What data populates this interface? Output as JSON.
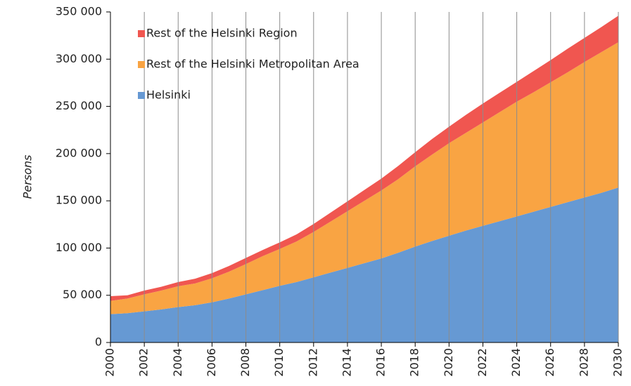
{
  "chart_data": {
    "type": "stacked_area",
    "y_label": "Persons",
    "x": [
      2000,
      2001,
      2002,
      2003,
      2004,
      2005,
      2006,
      2007,
      2008,
      2009,
      2010,
      2011,
      2012,
      2013,
      2014,
      2015,
      2016,
      2017,
      2018,
      2019,
      2020,
      2021,
      2022,
      2023,
      2024,
      2025,
      2026,
      2027,
      2028,
      2029,
      2030
    ],
    "series": [
      {
        "name": "Helsinki",
        "color": "#6699d3",
        "values": [
          30000,
          31000,
          33000,
          35000,
          37500,
          39500,
          42500,
          46500,
          51000,
          55500,
          60000,
          64000,
          69000,
          74000,
          79000,
          84000,
          89000,
          95000,
          101500,
          107500,
          113000,
          118500,
          123500,
          128500,
          133500,
          138500,
          143500,
          148500,
          153500,
          158500,
          164000
        ]
      },
      {
        "name": "Rest of the Helsinki Metropolitan Area",
        "color": "#f9a443",
        "values": [
          14000,
          15500,
          18000,
          20000,
          22000,
          23000,
          25500,
          28500,
          32000,
          36000,
          39000,
          43000,
          48000,
          54000,
          60000,
          66000,
          72000,
          78000,
          85000,
          91500,
          98000,
          103500,
          109500,
          115500,
          121500,
          126500,
          132000,
          137500,
          143500,
          149000,
          154000
        ]
      },
      {
        "name": "Rest of the Helsinki Region",
        "color": "#f05650",
        "values": [
          5000,
          3500,
          4000,
          4000,
          4500,
          5000,
          5500,
          6000,
          6500,
          6500,
          7000,
          7500,
          8500,
          9500,
          10500,
          11500,
          12500,
          14000,
          15000,
          16500,
          17500,
          19000,
          20000,
          20500,
          21000,
          22500,
          23500,
          25000,
          25500,
          26500,
          28000
        ]
      }
    ],
    "xlim": [
      2000,
      2030
    ],
    "xticks": [
      2000,
      2002,
      2004,
      2006,
      2008,
      2010,
      2012,
      2014,
      2016,
      2018,
      2020,
      2022,
      2024,
      2026,
      2028,
      2030
    ],
    "ylim": [
      0,
      350000
    ],
    "yticks": [
      0,
      {
        "value": 50000,
        "label": "50 000"
      },
      {
        "value": 100000,
        "label": "100 000"
      },
      {
        "value": 150000,
        "label": "150 000"
      },
      {
        "value": 200000,
        "label": "200 000"
      },
      {
        "value": 250000,
        "label": "250 000"
      },
      {
        "value": 300000,
        "label": "300 000"
      },
      {
        "value": 350000,
        "label": "350 000"
      }
    ],
    "grid": "x",
    "legend": "top-left"
  }
}
